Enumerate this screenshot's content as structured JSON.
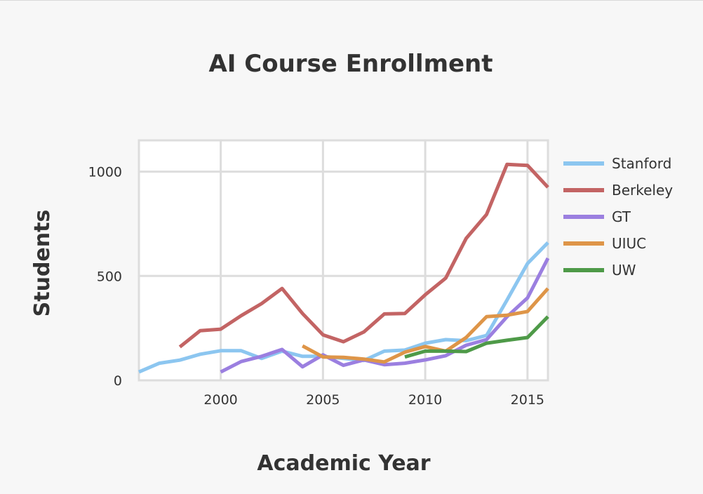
{
  "chart_data": {
    "type": "line",
    "title": "AI Course Enrollment",
    "xlabel": "Academic Year",
    "ylabel": "Students",
    "xlim": [
      1996,
      2016
    ],
    "ylim": [
      0,
      1150
    ],
    "x_ticks": [
      2000,
      2005,
      2010,
      2015
    ],
    "y_ticks": [
      0,
      500,
      1000
    ],
    "grid": true,
    "legend_position": "right",
    "series": [
      {
        "name": "Stanford",
        "color": "#8cc6f0",
        "x": [
          1996,
          1997,
          1998,
          1999,
          2000,
          2001,
          2002,
          2003,
          2004,
          2005,
          2006,
          2007,
          2008,
          2009,
          2010,
          2011,
          2012,
          2013,
          2014,
          2015,
          2016
        ],
        "y": [
          40,
          82,
          97,
          125,
          142,
          142,
          105,
          140,
          115,
          115,
          105,
          95,
          140,
          145,
          178,
          195,
          190,
          215,
          385,
          560,
          660
        ]
      },
      {
        "name": "Berkeley",
        "color": "#c36464",
        "x": [
          1998,
          1999,
          2000,
          2001,
          2002,
          2003,
          2004,
          2005,
          2006,
          2007,
          2008,
          2009,
          2010,
          2011,
          2012,
          2013,
          2014,
          2015,
          2016
        ],
        "y": [
          160,
          238,
          245,
          310,
          368,
          440,
          320,
          218,
          185,
          232,
          318,
          320,
          410,
          490,
          680,
          795,
          1035,
          1030,
          925
        ]
      },
      {
        "name": "GT",
        "color": "#9b7fe0",
        "x": [
          2000,
          2001,
          2002,
          2003,
          2004,
          2005,
          2006,
          2007,
          2008,
          2009,
          2010,
          2011,
          2012,
          2013,
          2014,
          2015,
          2016
        ],
        "y": [
          40,
          90,
          115,
          148,
          65,
          122,
          72,
          98,
          75,
          82,
          98,
          118,
          168,
          195,
          305,
          395,
          585
        ]
      },
      {
        "name": "UIUC",
        "color": "#de9548",
        "x": [
          2004,
          2005,
          2006,
          2007,
          2008,
          2009,
          2010,
          2011,
          2012,
          2013,
          2014,
          2015,
          2016
        ],
        "y": [
          165,
          112,
          110,
          102,
          88,
          135,
          162,
          140,
          205,
          305,
          312,
          330,
          440
        ]
      },
      {
        "name": "UW",
        "color": "#4e9a48",
        "x": [
          2009,
          2010,
          2011,
          2012,
          2013,
          2014,
          2015,
          2016
        ],
        "y": [
          112,
          140,
          140,
          138,
          178,
          192,
          205,
          305
        ]
      }
    ]
  }
}
